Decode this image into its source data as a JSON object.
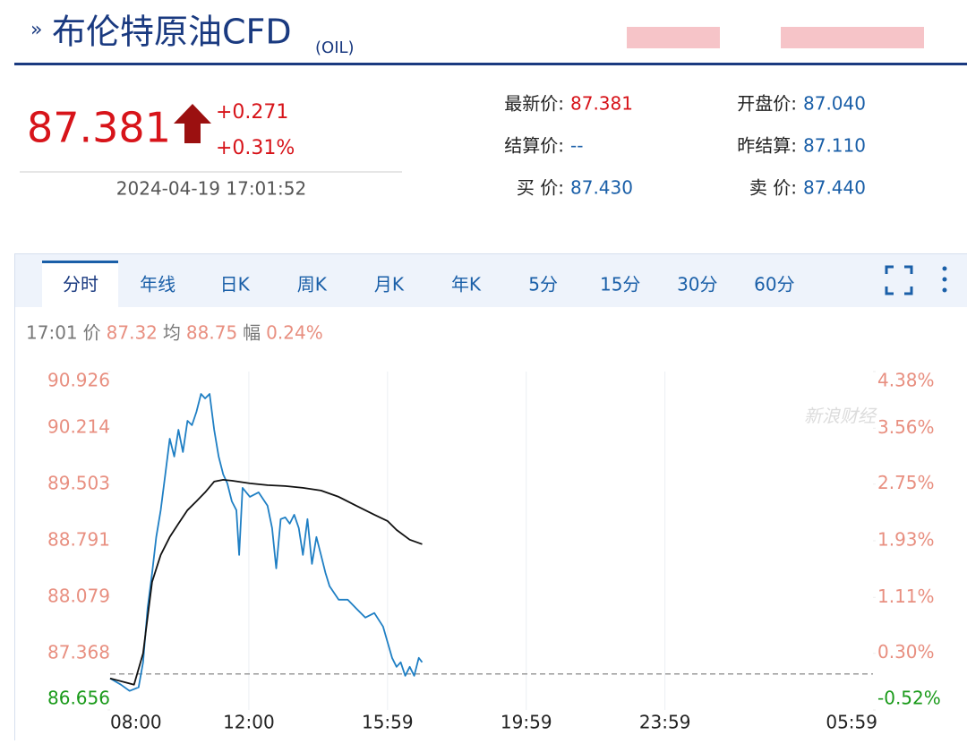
{
  "header": {
    "title": "布伦特原油CFD",
    "code": "(OIL)"
  },
  "quote": {
    "price": "87.381",
    "change": "+0.271",
    "change_pct": "+0.31%",
    "time": "2024-04-19 17:01:52"
  },
  "fields": [
    [
      "最新价:",
      "87.381"
    ],
    [
      "开盘价:",
      "87.040"
    ],
    [
      "结算价:",
      "--"
    ],
    [
      "昨结算:",
      "87.110"
    ],
    [
      "买 价:",
      "87.430"
    ],
    [
      "卖 价:",
      "87.440"
    ]
  ],
  "tabs": [
    "分时",
    "年线",
    "日K",
    "周K",
    "月K",
    "年K",
    "5分",
    "15分",
    "30分",
    "60分"
  ],
  "info": {
    "time": "17:01",
    "price_label": "价",
    "price": "87.32",
    "avg_label": "均",
    "avg": "88.75",
    "amp_label": "幅",
    "amp": "0.24%"
  },
  "watermark": "新浪财经",
  "chart_data": {
    "type": "line",
    "xlim": [
      0,
      22
    ],
    "xticks": [
      {
        "value": 0,
        "label": "08:00"
      },
      {
        "value": 4,
        "label": "12:00"
      },
      {
        "value": 8,
        "label": "15:59"
      },
      {
        "value": 12,
        "label": "19:59"
      },
      {
        "value": 16,
        "label": "23:59"
      },
      {
        "value": 22,
        "label": "05:59"
      }
    ],
    "ylim": [
      86.656,
      90.926
    ],
    "yticks": [
      86.656,
      87.368,
      88.079,
      88.791,
      89.503,
      90.214,
      90.926
    ],
    "y2lim": [
      -0.52,
      4.38
    ],
    "y2ticks": [
      {
        "value": -0.52,
        "label": "-0.52%"
      },
      {
        "value": 0.3,
        "label": "0.30%"
      },
      {
        "value": 1.11,
        "label": "1.11%"
      },
      {
        "value": 1.93,
        "label": "1.93%"
      },
      {
        "value": 2.75,
        "label": "2.75%"
      },
      {
        "value": 3.56,
        "label": "3.56%"
      },
      {
        "value": 4.38,
        "label": "4.38%"
      }
    ],
    "reference_line": 87.11,
    "grid": true,
    "series": [
      {
        "color": "#1f7fc4",
        "x": [
          0,
          0.31,
          0.56,
          0.82,
          0.95,
          1.08,
          1.21,
          1.33,
          1.46,
          1.59,
          1.72,
          1.85,
          1.97,
          2.1,
          2.23,
          2.36,
          2.49,
          2.62,
          2.74,
          2.87,
          3.0,
          3.13,
          3.26,
          3.38,
          3.51,
          3.64,
          3.72,
          3.82,
          4.03,
          4.28,
          4.54,
          4.67,
          4.79,
          4.92,
          5.05,
          5.18,
          5.31,
          5.44,
          5.56,
          5.69,
          5.82,
          5.95,
          6.08,
          6.21,
          6.33,
          6.59,
          6.85,
          7.1,
          7.36,
          7.62,
          7.87,
          8.13,
          8.26,
          8.38,
          8.51,
          8.64,
          8.77,
          8.9,
          9.0
        ],
        "values": [
          87.055,
          86.976,
          86.897,
          86.942,
          87.258,
          87.935,
          88.386,
          88.838,
          89.177,
          89.628,
          90.079,
          89.854,
          90.192,
          89.91,
          90.305,
          90.249,
          90.418,
          90.644,
          90.587,
          90.644,
          90.192,
          89.854,
          89.628,
          89.515,
          89.289,
          89.177,
          88.612,
          89.459,
          89.346,
          89.402,
          89.233,
          88.951,
          88.443,
          89.064,
          89.086,
          89.007,
          89.12,
          88.951,
          88.612,
          89.064,
          88.499,
          88.838,
          88.612,
          88.386,
          88.217,
          88.048,
          88.048,
          87.935,
          87.822,
          87.879,
          87.709,
          87.314,
          87.201,
          87.258,
          87.088,
          87.201,
          87.088,
          87.314,
          87.258
        ]
      },
      {
        "color": "#111111",
        "x": [
          0,
          0.69,
          0.95,
          1.08,
          1.21,
          1.46,
          1.72,
          1.97,
          2.23,
          2.49,
          2.74,
          3.0,
          3.26,
          3.51,
          4.03,
          4.54,
          5.05,
          5.56,
          6.08,
          6.59,
          7.1,
          7.62,
          8.0,
          8.26,
          8.64,
          9.0
        ],
        "values": [
          87.055,
          86.976,
          87.371,
          87.822,
          88.274,
          88.612,
          88.838,
          89.007,
          89.177,
          89.289,
          89.402,
          89.538,
          89.56,
          89.549,
          89.515,
          89.493,
          89.481,
          89.459,
          89.425,
          89.346,
          89.233,
          89.12,
          89.041,
          88.928,
          88.804,
          88.748
        ]
      }
    ]
  }
}
